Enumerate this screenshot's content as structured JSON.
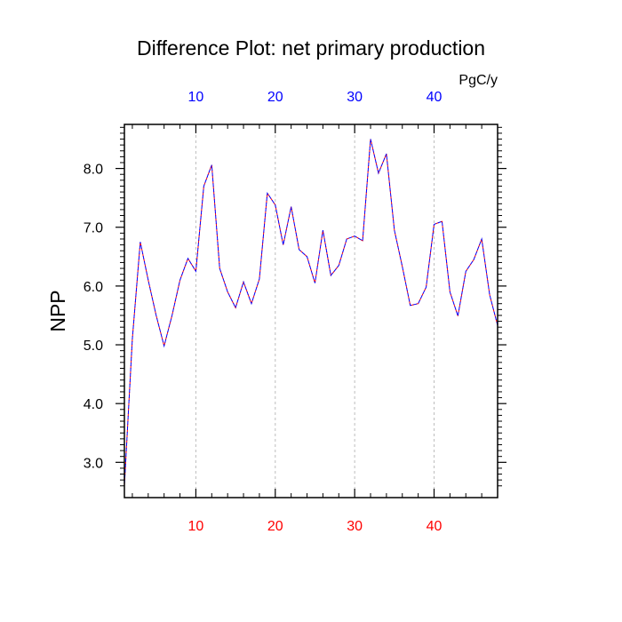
{
  "chart_data": {
    "type": "line",
    "title": "Difference Plot: net primary production",
    "units_label": "PgC/y",
    "ylabel": "NPP",
    "xlabel": "",
    "xlim": [
      1,
      48
    ],
    "ylim": [
      2.4,
      8.75
    ],
    "x_major_ticks": [
      10,
      20,
      30,
      40
    ],
    "x_tick_labels": [
      "10",
      "20",
      "30",
      "40"
    ],
    "y_major_ticks": [
      3.0,
      4.0,
      5.0,
      6.0,
      7.0,
      8.0
    ],
    "y_tick_labels": [
      "3.0",
      "4.0",
      "5.0",
      "6.0",
      "7.0",
      "8.0"
    ],
    "grid": "vertical dashed at major x ticks",
    "bottom_tick_color": "#ff0000",
    "top_tick_color": "#0000ff",
    "series": [
      {
        "color_a": "#ff0000",
        "color_b": "#0000ff",
        "x": [
          1,
          2,
          3,
          4,
          5,
          6,
          7,
          8,
          9,
          10,
          11,
          12,
          13,
          14,
          15,
          16,
          17,
          18,
          19,
          20,
          21,
          22,
          23,
          24,
          25,
          26,
          27,
          28,
          29,
          30,
          31,
          32,
          33,
          34,
          35,
          36,
          37,
          38,
          39,
          40,
          41,
          42,
          43,
          44,
          45,
          46,
          47,
          48
        ],
        "values": [
          2.6,
          5.1,
          6.75,
          6.1,
          5.5,
          4.98,
          5.5,
          6.1,
          6.47,
          6.25,
          7.7,
          8.06,
          6.3,
          5.9,
          5.63,
          6.07,
          5.7,
          6.12,
          7.58,
          7.38,
          6.7,
          7.35,
          6.62,
          6.5,
          6.05,
          6.95,
          6.18,
          6.35,
          6.8,
          6.85,
          6.77,
          8.5,
          7.92,
          8.25,
          6.95,
          6.33,
          5.67,
          5.7,
          5.98,
          7.05,
          7.1,
          5.9,
          5.49,
          6.25,
          6.45,
          6.8,
          5.85,
          5.33
        ]
      }
    ]
  }
}
